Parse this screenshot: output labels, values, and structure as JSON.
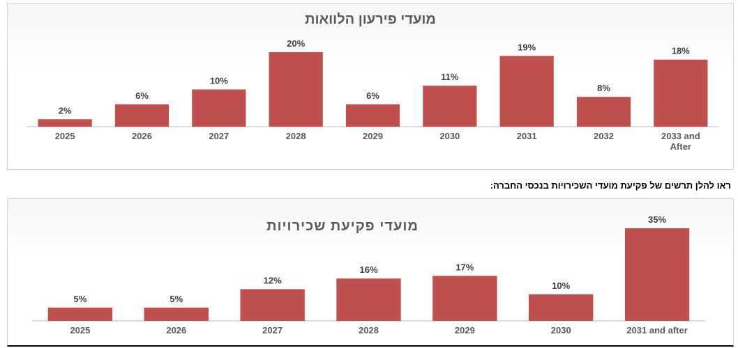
{
  "caption": "ראו להלן תרשים של פקיעת מועדי השכירויות בנכסי החברה:",
  "colors": {
    "bar": "#C0504D",
    "axis": "#BFBFBF",
    "title": "#595959"
  },
  "chart_data": [
    {
      "type": "bar",
      "title": "מועדי פירעון הלוואות",
      "categories": [
        "2025",
        "2026",
        "2027",
        "2028",
        "2029",
        "2030",
        "2031",
        "2032",
        "2033 and After"
      ],
      "values": [
        2,
        6,
        10,
        20,
        6,
        11,
        19,
        8,
        18
      ],
      "labels": [
        "2%",
        "6%",
        "10%",
        "20%",
        "6%",
        "11%",
        "19%",
        "8%",
        "18%"
      ],
      "ylim": [
        0,
        20
      ],
      "grid": false,
      "legend": "none"
    },
    {
      "type": "bar",
      "title": "מועדי פקיעת שכירויות",
      "categories": [
        "2025",
        "2026",
        "2027",
        "2028",
        "2029",
        "2030",
        "2031 and after"
      ],
      "values": [
        5,
        5,
        12,
        16,
        17,
        10,
        35
      ],
      "labels": [
        "5%",
        "5%",
        "12%",
        "16%",
        "17%",
        "10%",
        "35%"
      ],
      "ylim": [
        0,
        35
      ],
      "grid": false,
      "legend": "none"
    }
  ]
}
